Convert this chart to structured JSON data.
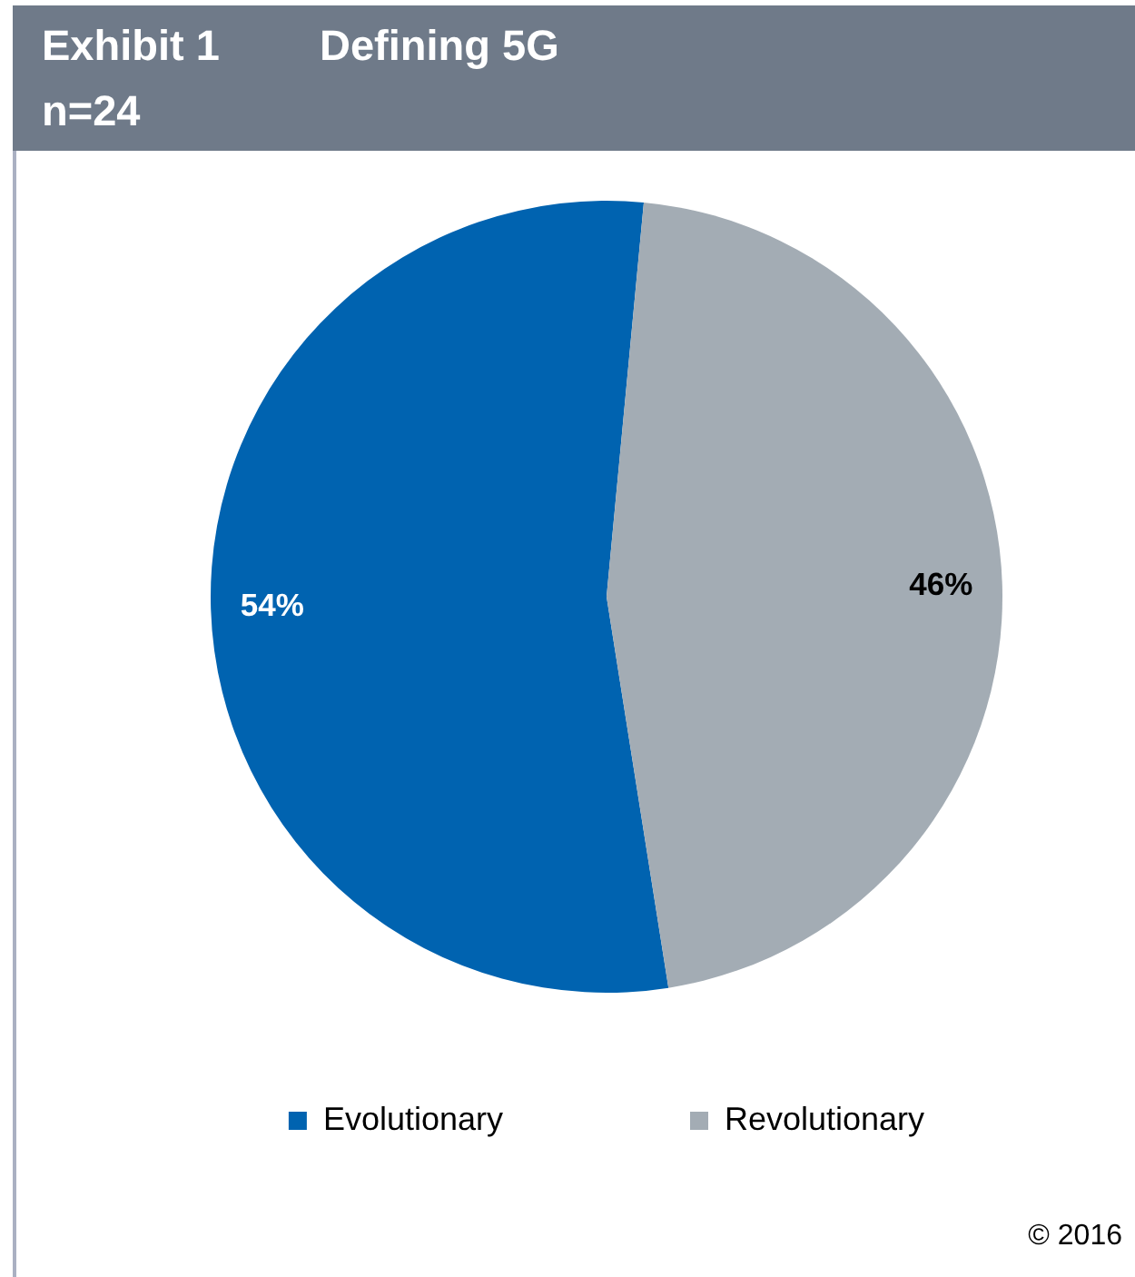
{
  "chart_data": {
    "type": "pie",
    "title": "Defining 5G",
    "subtitle": "n=24",
    "annotations": [
      "Exhibit 1",
      "© 2016"
    ],
    "categories": [
      "Evolutionary",
      "Revolutionary"
    ],
    "values": [
      54,
      46
    ],
    "colors": [
      "#0063b0",
      "#a3acb4"
    ],
    "value_labels": [
      "54%",
      "46%"
    ],
    "legend": "bottom"
  }
}
